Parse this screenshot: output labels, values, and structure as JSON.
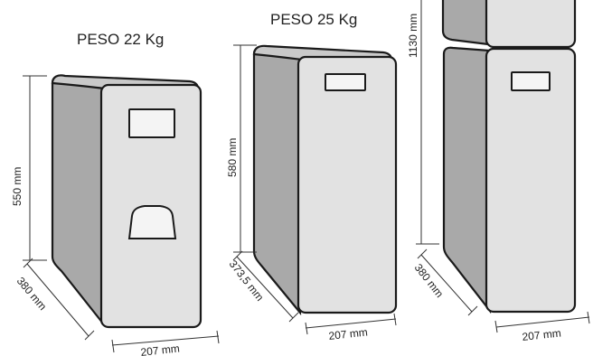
{
  "units": [
    {
      "weight_label": "PESO 22 Kg",
      "height": "550 mm",
      "depth": "380 mm",
      "width": "207 mm"
    },
    {
      "weight_label": "PESO 25 Kg",
      "height": "580 mm",
      "depth": "373,5 mm",
      "width": "207 mm"
    },
    {
      "weight_label": "",
      "height": "1130 mm",
      "depth": "380 mm",
      "width": "207 mm"
    }
  ],
  "colors": {
    "front": "#e2e2e2",
    "side": "#a9a9a9",
    "outline": "#1a1a1a"
  }
}
